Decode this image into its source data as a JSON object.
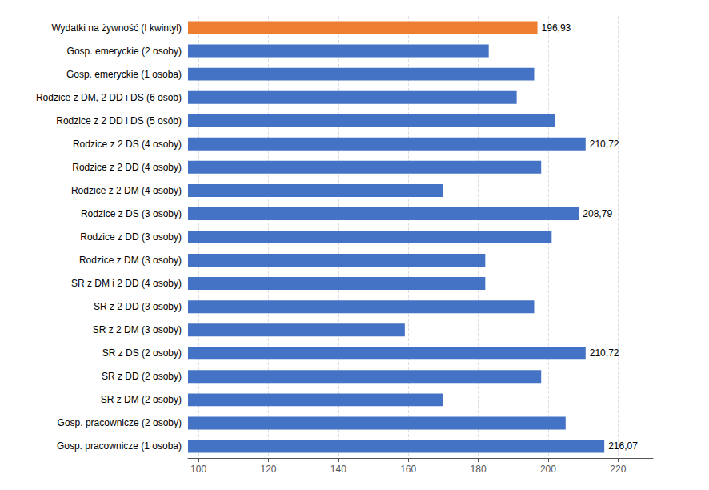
{
  "chart_data": {
    "type": "bar",
    "orientation": "horizontal",
    "categories": [
      "Gosp. pracownicze (1 osoba)",
      "Gosp. pracownicze (2 osoby)",
      "SR z DM (2 osoby)",
      "SR z DD (2 osoby)",
      "SR z DS (2 osoby)",
      "SR z 2 DM (3 osoby)",
      "SR z 2 DD (3 osoby)",
      "SR z DM i 2 DD (4 osoby)",
      "Rodzice z DM (3 osoby)",
      "Rodzice z DD (3 osoby)",
      "Rodzice z DS (3 osoby)",
      "Rodzice z 2 DM (4 osoby)",
      "Rodzice z 2 DD (4 osoby)",
      "Rodzice z 2 DS (4 osoby)",
      "Rodzice z 2 DD i DS (5 osób)",
      "Rodzice z DM, 2 DD i DS (6 osób)",
      "Gosp. emeryckie (1 osoba)",
      "Gosp. emeryckie (2 osoby)",
      "Wydatki na żywność (I kwintyl)"
    ],
    "values": [
      216.07,
      205.0,
      170.0,
      198.0,
      210.72,
      159.0,
      196.0,
      182.0,
      182.0,
      201.0,
      208.79,
      170.0,
      198.0,
      210.72,
      202.0,
      191.0,
      196.0,
      183.0,
      196.93
    ],
    "value_labels": [
      "216,07",
      null,
      null,
      null,
      "210,72",
      null,
      null,
      null,
      null,
      null,
      "208,79",
      null,
      null,
      "210,72",
      null,
      null,
      null,
      null,
      "196,93"
    ],
    "colors": [
      "#4472C4",
      "#4472C4",
      "#4472C4",
      "#4472C4",
      "#4472C4",
      "#4472C4",
      "#4472C4",
      "#4472C4",
      "#4472C4",
      "#4472C4",
      "#4472C4",
      "#4472C4",
      "#4472C4",
      "#4472C4",
      "#4472C4",
      "#4472C4",
      "#4472C4",
      "#4472C4",
      "#ED7D31"
    ],
    "xlim": [
      97,
      230
    ],
    "xticks": [
      100,
      120,
      140,
      160,
      180,
      200,
      220
    ],
    "grid": true
  }
}
